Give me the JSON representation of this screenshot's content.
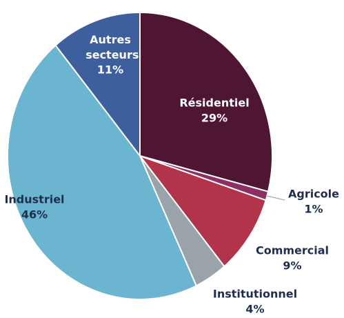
{
  "chart_data": {
    "type": "pie",
    "categories": [
      "Résidentiel",
      "Agricole",
      "Commercial",
      "Institutionnel",
      "Industriel",
      "Autres secteurs"
    ],
    "values": [
      29,
      1,
      9,
      4,
      46,
      11
    ],
    "value_labels": [
      "29%",
      "1%",
      "9%",
      "4%",
      "46%",
      "11%"
    ],
    "colors": [
      "#4f1633",
      "#8c2f62",
      "#b2344b",
      "#9aa2aa",
      "#6cb5d0",
      "#3e5f9e"
    ]
  }
}
